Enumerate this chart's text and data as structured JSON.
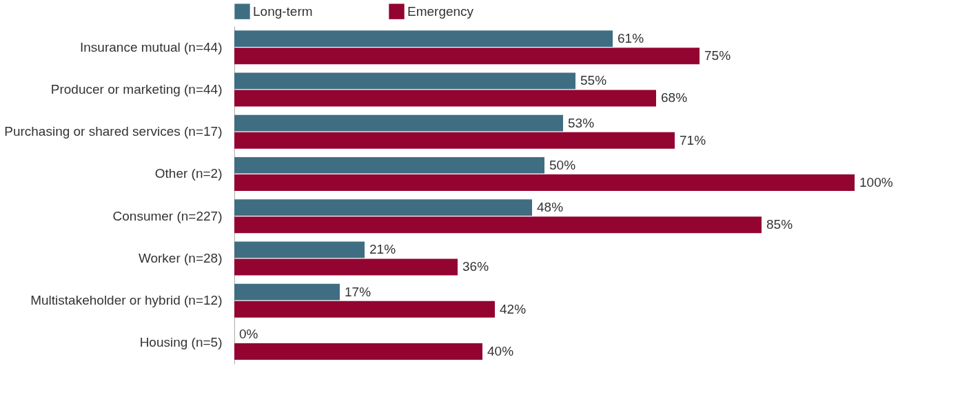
{
  "chart_data": {
    "type": "bar",
    "orientation": "horizontal",
    "legend": "top",
    "categories": [
      "Insurance mutual (n=44)",
      "Producer or marketing (n=44)",
      "Purchasing or shared services (n=17)",
      "Other (n=2)",
      "Consumer (n=227)",
      "Worker (n=28)",
      "Multistakeholder or hybrid (n=12)",
      "Housing (n=5)"
    ],
    "series": [
      {
        "name": "Long-term",
        "color": "#3f6e82",
        "values": [
          61,
          55,
          53,
          50,
          48,
          21,
          17,
          0
        ],
        "value_labels": [
          "61%",
          "55%",
          "53%",
          "50%",
          "48%",
          "21%",
          "17%",
          "0%"
        ]
      },
      {
        "name": "Emergency",
        "color": "#930530",
        "values": [
          75,
          68,
          71,
          100,
          85,
          36,
          42,
          40
        ],
        "value_labels": [
          "75%",
          "68%",
          "71%",
          "100%",
          "85%",
          "36%",
          "42%",
          "40%"
        ]
      }
    ]
  }
}
